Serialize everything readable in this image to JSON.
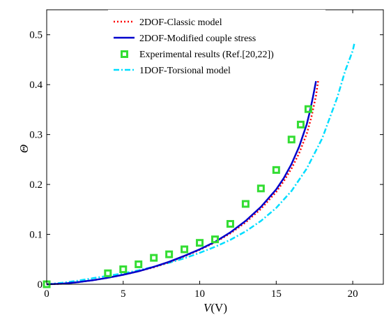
{
  "chart_data": {
    "type": "line",
    "xlim": [
      0,
      22
    ],
    "ylim": [
      0,
      0.55
    ],
    "x_ticks": [
      0,
      5,
      10,
      15,
      20
    ],
    "y_ticks": [
      0,
      0.1,
      0.2,
      0.3,
      0.4,
      0.5
    ],
    "x_tick_labels": [
      "0",
      "5",
      "10",
      "15",
      "20"
    ],
    "y_tick_labels": [
      "0",
      "0.1",
      "0.2",
      "0.3",
      "0.4",
      "0.5"
    ],
    "xlabel_var": "V",
    "xlabel_unit": "(V)",
    "ylabel": "Θ",
    "grid": false,
    "legend_position": "top-right",
    "series": [
      {
        "name": "2DOF-Classic model",
        "style": "dotted",
        "color": "#ff0000",
        "x": [
          0,
          1,
          2,
          3,
          4,
          5,
          6,
          7,
          8,
          9,
          10,
          11,
          12,
          13,
          14,
          15,
          15.5,
          16,
          16.5,
          17,
          17.3,
          17.6,
          17.8
        ],
        "y": [
          0,
          0.001,
          0.004,
          0.008,
          0.013,
          0.019,
          0.026,
          0.034,
          0.044,
          0.056,
          0.069,
          0.084,
          0.102,
          0.124,
          0.151,
          0.185,
          0.207,
          0.232,
          0.263,
          0.302,
          0.335,
          0.378,
          0.42
        ]
      },
      {
        "name": "2DOF-Modified couple stress",
        "style": "solid",
        "color": "#0000cc",
        "x": [
          0,
          1,
          2,
          3,
          4,
          5,
          6,
          7,
          8,
          9,
          10,
          11,
          12,
          13,
          14,
          15,
          15.5,
          16,
          16.5,
          17,
          17.2,
          17.4,
          17.6
        ],
        "y": [
          0,
          0.001,
          0.004,
          0.008,
          0.013,
          0.019,
          0.026,
          0.035,
          0.045,
          0.057,
          0.07,
          0.085,
          0.104,
          0.127,
          0.155,
          0.19,
          0.213,
          0.241,
          0.276,
          0.321,
          0.346,
          0.375,
          0.407
        ]
      },
      {
        "name": "Experimental results (Ref.[20,22])",
        "style": "markers",
        "color": "#33dd33",
        "x": [
          0,
          4,
          5,
          6,
          7,
          8,
          9,
          10,
          11,
          12,
          13,
          14,
          15,
          16,
          16.6,
          17.1
        ],
        "y": [
          0,
          0.022,
          0.03,
          0.04,
          0.053,
          0.06,
          0.07,
          0.083,
          0.09,
          0.121,
          0.161,
          0.192,
          0.229,
          0.29,
          0.32,
          0.351
        ]
      },
      {
        "name": "1DOF-Torsional model",
        "style": "dashdot",
        "color": "#00ddff",
        "x": [
          0,
          1,
          2,
          3,
          4,
          5,
          6,
          7,
          8,
          9,
          10,
          11,
          12,
          13,
          14,
          15,
          16,
          17,
          18,
          19,
          19.5,
          20,
          20.1
        ],
        "y": [
          0,
          0.003,
          0.007,
          0.012,
          0.017,
          0.022,
          0.028,
          0.035,
          0.043,
          0.052,
          0.063,
          0.075,
          0.089,
          0.106,
          0.127,
          0.153,
          0.187,
          0.232,
          0.292,
          0.375,
          0.427,
          0.468,
          0.482
        ]
      }
    ]
  }
}
